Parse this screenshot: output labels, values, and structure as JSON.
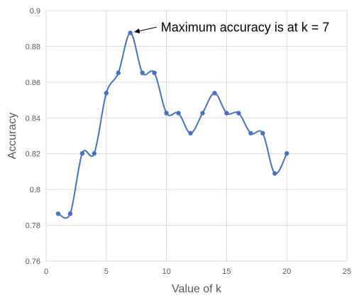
{
  "chart_data": {
    "type": "line",
    "smooth": true,
    "x": [
      1,
      2,
      3,
      4,
      5,
      6,
      7,
      8,
      9,
      10,
      11,
      12,
      13,
      14,
      15,
      16,
      17,
      18,
      19,
      20
    ],
    "y": [
      0.7865,
      0.7865,
      0.8202,
      0.8202,
      0.8539,
      0.8652,
      0.8876,
      0.8652,
      0.8652,
      0.8427,
      0.8427,
      0.8315,
      0.8427,
      0.8539,
      0.8427,
      0.8427,
      0.8315,
      0.8315,
      0.809,
      0.8202
    ],
    "xlabel": "Value of k",
    "ylabel": "Accuracy",
    "xlim": [
      0,
      25
    ],
    "ylim": [
      0.76,
      0.9
    ],
    "xticks": [
      0,
      5,
      10,
      15,
      20,
      25
    ],
    "yticks": [
      0.76,
      0.78,
      0.8,
      0.82,
      0.84,
      0.86,
      0.88,
      0.9
    ],
    "xtick_labels": [
      "0",
      "5",
      "10",
      "15",
      "20",
      "25"
    ],
    "ytick_labels": [
      "0.76",
      "0.78",
      "0.8",
      "0.82",
      "0.84",
      "0.86",
      "0.88",
      "0.9"
    ],
    "grid": true,
    "annotation": {
      "text": "Maximum accuracy is at k = 7",
      "x": 7,
      "y": 0.8876
    },
    "colors": {
      "line": "#4472C4",
      "marker": "#4472C4",
      "grid": "#D9D9D9",
      "text": "#595959"
    }
  }
}
